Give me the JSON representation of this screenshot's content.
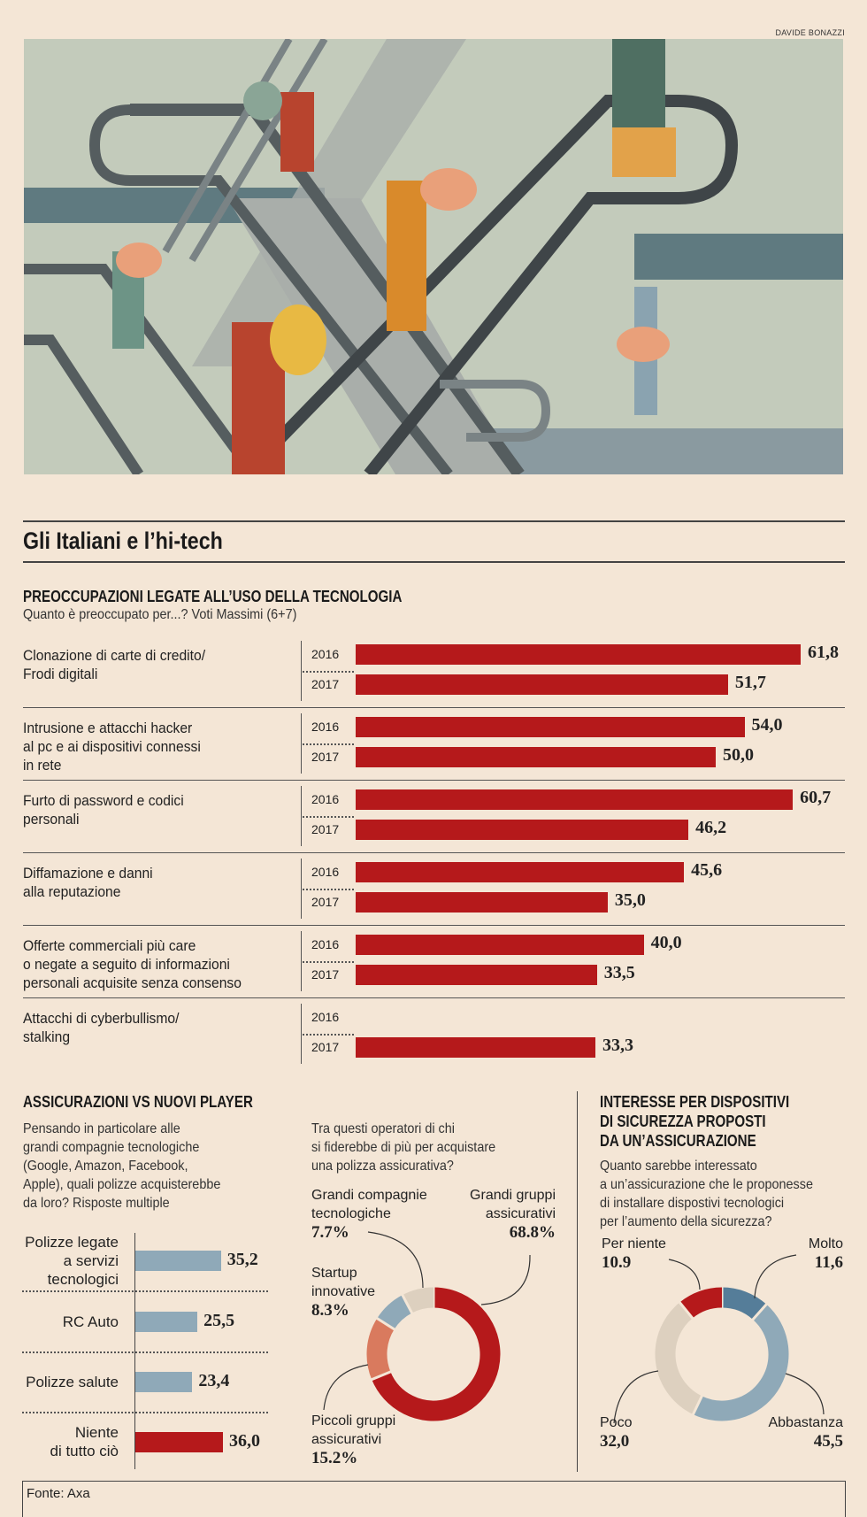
{
  "credit": "DAVIDE BONAZZI",
  "title": "Gli Italiani e l’hi-tech",
  "colors": {
    "background": "#f4e6d6",
    "red": "#b5191b",
    "salmon": "#d97a5e",
    "light_blue": "#8fa9b8",
    "dark_blue": "#557d99",
    "beige": "#ddd0bf"
  },
  "section1": {
    "heading": "PREOCCUPAZIONI LEGATE ALL’USO DELLA TECNOLOGIA",
    "subtitle": "Quanto è preoccupato per...? Voti Massimi (6+7)"
  },
  "section2": {
    "heading": "ASSICURAZIONI VS NUOVI PLAYER",
    "question_left": [
      "Pensando in particolare alle",
      "grandi compagnie tecnologiche",
      "(Google, Amazon, Facebook,",
      "Apple), quali polizze acquisterebbe",
      "da loro? Risposte multiple"
    ],
    "question_middle": [
      "Tra questi operatori di chi",
      "si fiderebbe di più per acquistare",
      "una polizza assicurativa?"
    ]
  },
  "section3": {
    "heading": [
      "INTERESSE PER DISPOSITIVI",
      "DI SICUREZZA PROPOSTI",
      "DA UN’ASSICURAZIONE"
    ],
    "question": [
      "Quanto sarebbe interessato",
      "a un’assicurazione che le proponesse",
      "di installare dispostivi tecnologici",
      "per l’aumento della sicurezza?"
    ]
  },
  "source": "Fonte: Axa",
  "chart_data": [
    {
      "type": "bar",
      "orientation": "horizontal",
      "categories": [
        [
          "Clonazione di carte di credito/",
          "Frodi digitali"
        ],
        [
          "Intrusione e attacchi hacker",
          "al pc e ai dispositivi connessi",
          "in rete"
        ],
        [
          "Furto di password e codici",
          "personali"
        ],
        [
          "Diffamazione e danni",
          "alla reputazione"
        ],
        [
          "Offerte commerciali più care",
          "o negate a seguito di informazioni",
          "personali acquisite senza consenso"
        ],
        [
          "Attacchi di cyberbullismo/",
          "stalking"
        ]
      ],
      "series": [
        {
          "name": "2016",
          "values": [
            61.8,
            54.0,
            60.7,
            45.6,
            40.0,
            null
          ],
          "labels": [
            "61,8",
            "54,0",
            "60,7",
            "45,6",
            "40,0",
            ""
          ]
        },
        {
          "name": "2017",
          "values": [
            51.7,
            50.0,
            46.2,
            35.0,
            33.5,
            33.3
          ],
          "labels": [
            "51,7",
            "50,0",
            "46,2",
            "35,0",
            "33,5",
            "33,3"
          ]
        }
      ],
      "color": "#b5191b"
    },
    {
      "type": "bar",
      "orientation": "horizontal",
      "categories": [
        [
          "Polizze legate",
          "a servizi",
          "tecnologici"
        ],
        [
          "RC Auto"
        ],
        [
          "Polizze salute"
        ],
        [
          "Niente",
          "di tutto ciò"
        ]
      ],
      "values": [
        35.2,
        25.5,
        23.4,
        36.0
      ],
      "labels": [
        "35,2",
        "25,5",
        "23,4",
        "36,0"
      ],
      "colors": [
        "#8fa9b8",
        "#8fa9b8",
        "#8fa9b8",
        "#b5191b"
      ]
    },
    {
      "type": "pie",
      "style": "donut",
      "slices": [
        {
          "label": [
            "Grandi gruppi",
            "assicurativi"
          ],
          "value": 68.8,
          "value_label": "68.8%",
          "color": "#b5191b"
        },
        {
          "label": [
            "Piccoli gruppi",
            "assicurativi"
          ],
          "value": 15.2,
          "value_label": "15.2%",
          "color": "#d97a5e"
        },
        {
          "label": [
            "Startup",
            "innovative"
          ],
          "value": 8.3,
          "value_label": "8.3%",
          "color": "#8fa9b8"
        },
        {
          "label": [
            "Grandi compagnie",
            "tecnologiche"
          ],
          "value": 7.7,
          "value_label": "7.7%",
          "color": "#ddd0bf"
        }
      ]
    },
    {
      "type": "pie",
      "style": "donut",
      "slices": [
        {
          "label": [
            "Molto"
          ],
          "value": 11.6,
          "value_label": "11,6",
          "color": "#557d99"
        },
        {
          "label": [
            "Abbastanza"
          ],
          "value": 45.5,
          "value_label": "45,5",
          "color": "#8fa9b8"
        },
        {
          "label": [
            "Poco"
          ],
          "value": 32.0,
          "value_label": "32,0",
          "color": "#ddd0bf"
        },
        {
          "label": [
            "Per niente"
          ],
          "value": 10.9,
          "value_label": "10.9",
          "color": "#b5191b"
        }
      ]
    }
  ]
}
